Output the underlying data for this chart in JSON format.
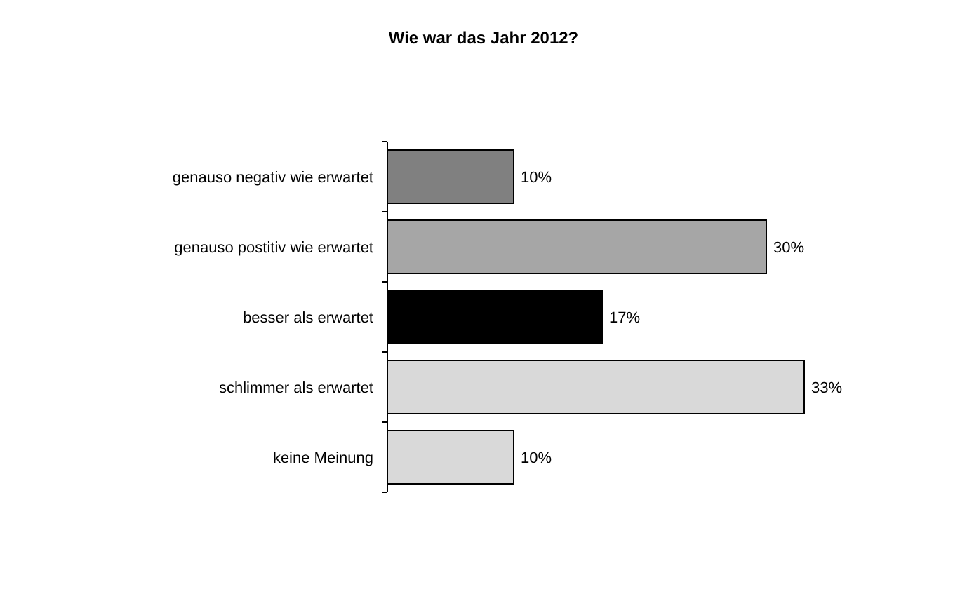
{
  "chart_data": {
    "type": "bar",
    "orientation": "horizontal",
    "title": "Wie war das Jahr 2012?",
    "categories": [
      "genauso negativ wie erwartet",
      "genauso postitiv wie erwartet",
      "besser als erwartet",
      "schlimmer als erwartet",
      "keine Meinung"
    ],
    "values": [
      10,
      30,
      17,
      33,
      10
    ],
    "colors": [
      "#808080",
      "#a6a6a6",
      "#000000",
      "#d9d9d9",
      "#d9d9d9"
    ],
    "value_labels": [
      "10%",
      "30%",
      "17%",
      "33%",
      "10%"
    ]
  }
}
